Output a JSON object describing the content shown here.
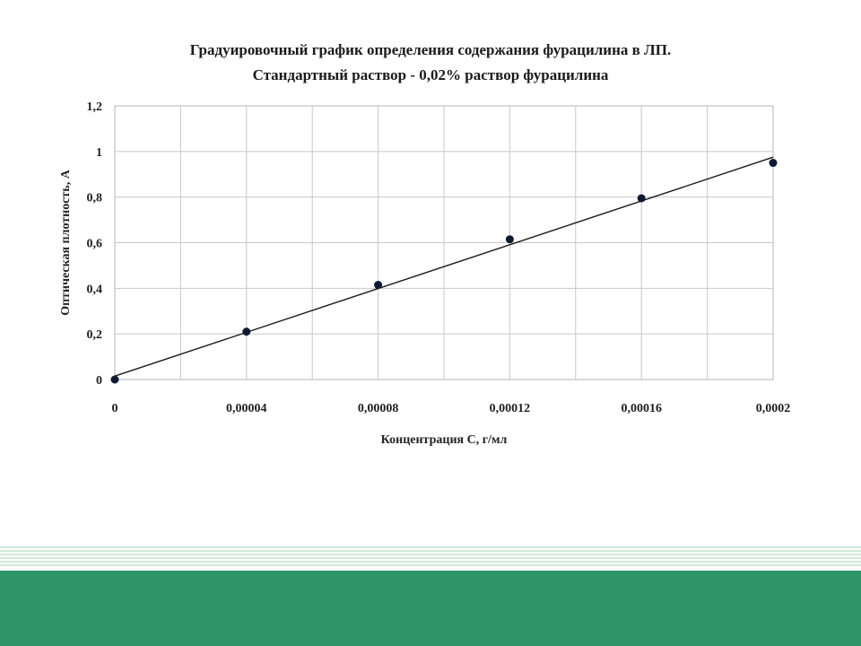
{
  "chart_data": {
    "type": "scatter",
    "title": "Градуировочный график определения содержания фурацилина в ЛП.",
    "subtitle": "Стандартный раствор - 0,02% раствор фурацилина",
    "xlabel": "Концентрация С, г/мл",
    "ylabel": "Оптическая плотность, А",
    "xlim": [
      0,
      0.0002
    ],
    "ylim": [
      0,
      1.2
    ],
    "x_ticks": [
      0,
      4e-05,
      8e-05,
      0.00012,
      0.00016,
      0.0002
    ],
    "x_tick_labels": [
      "0",
      "0,00004",
      "0,00008",
      "0,00012",
      "0,00016",
      "0,0002"
    ],
    "y_ticks": [
      0,
      0.2,
      0.4,
      0.6,
      0.8,
      1,
      1.2
    ],
    "y_tick_labels": [
      "0",
      "0,2",
      "0,4",
      "0,6",
      "0,8",
      "1",
      "1,2"
    ],
    "grid": true,
    "legend": "none",
    "series": [
      {
        "x": [
          0,
          4e-05,
          8e-05,
          0.00012,
          0.00016,
          0.0002
        ],
        "y": [
          0,
          0.21,
          0.415,
          0.615,
          0.795,
          0.95
        ],
        "color": "#0d1a33"
      }
    ],
    "trendline": {
      "type": "linear",
      "x": [
        0,
        0.0002
      ],
      "y": [
        0.015,
        0.975
      ],
      "color": "#1a1a1a"
    }
  },
  "theme": {
    "band_color": "#2e9668",
    "stripe_color": "#cfe8d8",
    "grid_color": "#c8c8c8"
  }
}
